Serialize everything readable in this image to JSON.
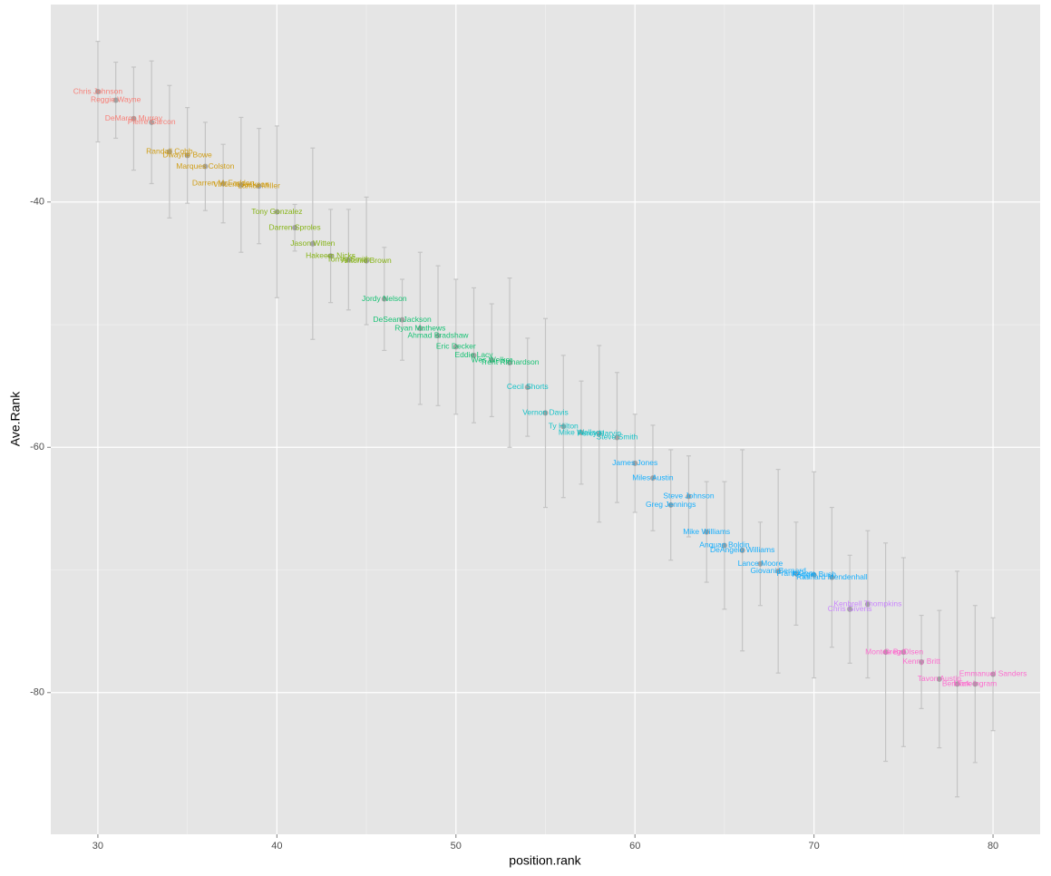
{
  "chart_data": {
    "type": "scatter",
    "x_label": "position.rank",
    "y_label": "Ave.Rank",
    "x": [
      30,
      31,
      32,
      33,
      34,
      35,
      36,
      37,
      38,
      39,
      40,
      41,
      42,
      43,
      44,
      45,
      46,
      47,
      48,
      49,
      50,
      51,
      52,
      53,
      54,
      55,
      56,
      57,
      58,
      59,
      60,
      61,
      62,
      63,
      64,
      65,
      66,
      67,
      68,
      69,
      70,
      71,
      72,
      73,
      74,
      75,
      76,
      77,
      78,
      79,
      80
    ],
    "values": [
      -31.0,
      -31.7,
      -33.2,
      -33.5,
      -35.9,
      -36.2,
      -37.1,
      -38.5,
      -38.6,
      -38.7,
      -40.8,
      -42.1,
      -43.4,
      -44.4,
      -44.7,
      -44.8,
      -47.9,
      -49.6,
      -50.3,
      -50.9,
      -51.8,
      -52.5,
      -52.9,
      -53.1,
      -55.1,
      -57.2,
      -58.3,
      -58.8,
      -58.9,
      -59.2,
      -61.3,
      -62.5,
      -64.7,
      -64.0,
      -66.9,
      -68.0,
      -68.4,
      -69.5,
      -70.1,
      -70.3,
      -70.4,
      -70.6,
      -73.2,
      -72.8,
      -76.7,
      -76.7,
      -77.5,
      -78.9,
      -79.3,
      -79.3,
      -78.5
    ],
    "errors": [
      4.1,
      3.1,
      4.2,
      5.0,
      5.4,
      3.9,
      3.6,
      3.2,
      5.5,
      4.7,
      7.0,
      1.9,
      7.8,
      3.8,
      4.1,
      5.2,
      4.2,
      3.3,
      6.2,
      5.7,
      5.5,
      5.5,
      4.6,
      6.9,
      4.0,
      7.7,
      5.8,
      4.2,
      7.2,
      5.3,
      4.0,
      4.3,
      4.5,
      3.3,
      4.1,
      5.2,
      8.2,
      3.4,
      8.3,
      4.2,
      8.4,
      5.7,
      4.4,
      6.0,
      8.9,
      7.7,
      3.8,
      5.6,
      9.2,
      6.4,
      4.6
    ],
    "labels": [
      "Chris Johnson",
      "Reggie Wayne",
      "DeMarco Murray",
      "Pierre Garcon",
      "Randall Cobb",
      "Dwayne Bowe",
      "Marques Colston",
      "Darren McFadden",
      "Vincent Jackson",
      "Lamar Miller",
      "Tony Gonzalez",
      "Darren Sproles",
      "Jason Witten",
      "Hakeem Nicks",
      "Torrey Smith",
      "Antonio Brown",
      "Jordy Nelson",
      "DeSean Jackson",
      "Ryan Mathews",
      "Ahmad Bradshaw",
      "Eric Decker",
      "Eddie Lacy",
      "Wes Welker",
      "Trent Richardson",
      "Cecil Shorts",
      "Vernon Davis",
      "Ty Hilton",
      "Mike Wallace",
      "Percy Harvin",
      "Steve Smith",
      "James Jones",
      "Miles Austin",
      "Greg Jennings",
      "Steve Johnson",
      "Mike Williams",
      "Anquan Boldin",
      "DeAngelo Williams",
      "Lance Moore",
      "Giovani Bernard",
      "Frank Gore",
      "Reggie Bush",
      "Rashard Mendenhall",
      "Chris Givens",
      "Kenbrell Thompkins",
      "Montee Ball",
      "Greg Olsen",
      "Kenny Britt",
      "Tavon Austin",
      "Ben Tate",
      "Mark Ingram",
      "Emmanuel Sanders"
    ],
    "colors": [
      "#F8766D",
      "#F8766D",
      "#F8766D",
      "#F8766D",
      "#CD9600",
      "#CD9600",
      "#CD9600",
      "#CD9600",
      "#CD9600",
      "#CD9600",
      "#7CAE00",
      "#7CAE00",
      "#7CAE00",
      "#7CAE00",
      "#7CAE00",
      "#7CAE00",
      "#00BE67",
      "#00BE67",
      "#00BE67",
      "#00BE67",
      "#00BE67",
      "#00BE67",
      "#00BE67",
      "#00BE67",
      "#00BFC4",
      "#00BFC4",
      "#00BFC4",
      "#00BFC4",
      "#00BFC4",
      "#00BFC4",
      "#00A9FF",
      "#00A9FF",
      "#00A9FF",
      "#00A9FF",
      "#00A9FF",
      "#00A9FF",
      "#00A9FF",
      "#00A9FF",
      "#00A9FF",
      "#00A9FF",
      "#00A9FF",
      "#00A9FF",
      "#C77CFF",
      "#C77CFF",
      "#FF61CC",
      "#FF61CC",
      "#FF61CC",
      "#FF61CC",
      "#FF61CC",
      "#FF61CC",
      "#FF61CC"
    ],
    "point_color": "#8a8a8a",
    "error_color": "#c4c4c4",
    "xlim": [
      27.37,
      82.63
    ],
    "ylim": [
      -91.55,
      -23.9
    ],
    "xticks": [
      30,
      40,
      50,
      60,
      70,
      80
    ],
    "yticks": [
      -40,
      -60,
      -80
    ],
    "grid": true
  }
}
